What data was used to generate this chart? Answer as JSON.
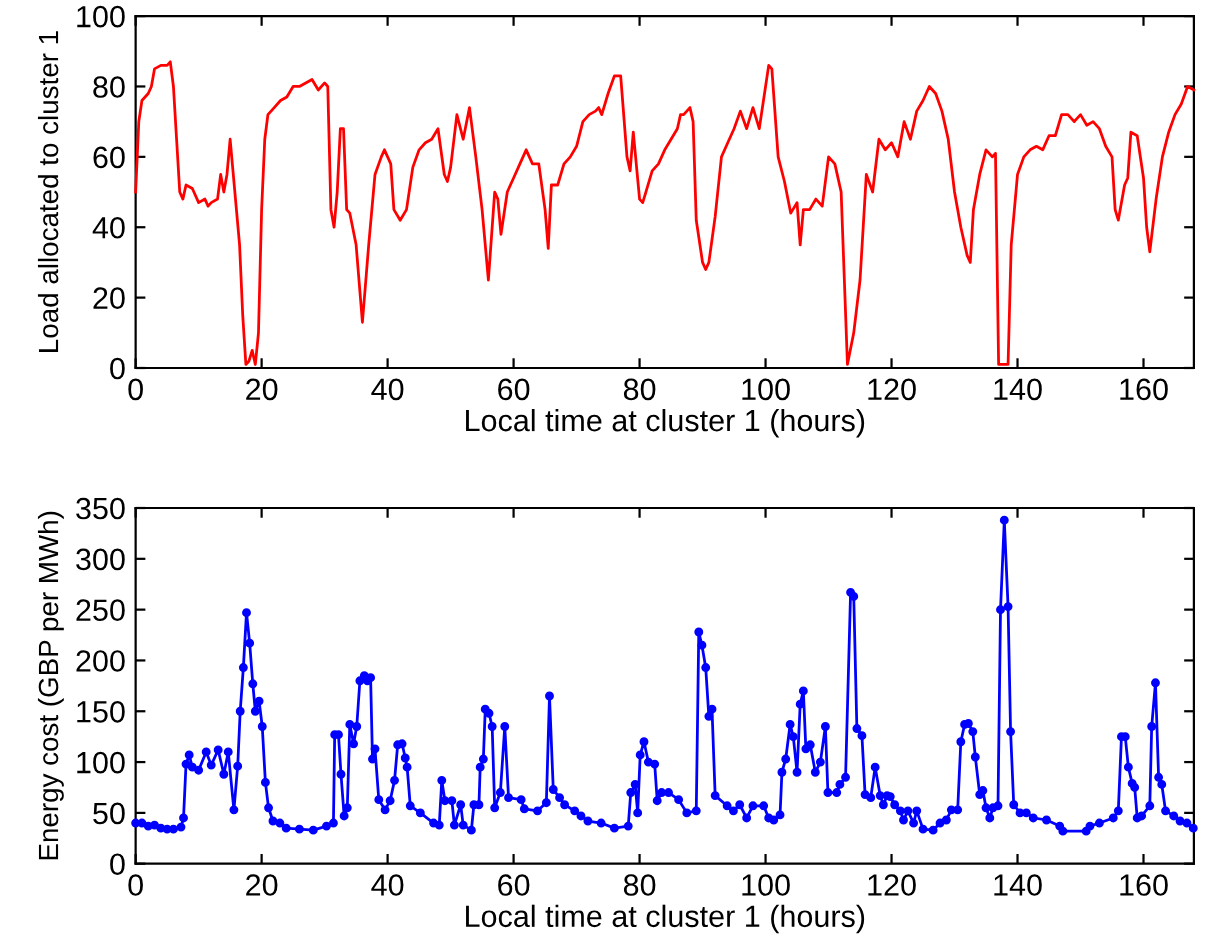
{
  "chart_data": [
    {
      "type": "line",
      "xlabel": "Local time at cluster 1 (hours)",
      "ylabel": "Load allocated to cluster 1",
      "xlim": [
        0,
        168
      ],
      "xticks": [
        0,
        20,
        40,
        60,
        80,
        100,
        120,
        140,
        160
      ],
      "ylim": [
        0,
        100
      ],
      "yticks": [
        0,
        20,
        40,
        60,
        80,
        100
      ],
      "grid": false,
      "legend": false,
      "marker": "none",
      "line_style": "solid",
      "series": [
        {
          "color": "#ff0000",
          "x": [
            0,
            0.5,
            1,
            2,
            2.5,
            3,
            4,
            5,
            5.5,
            6,
            6.5,
            7,
            7.5,
            8,
            9,
            10,
            11,
            11.5,
            12,
            13,
            13.5,
            14,
            14.5,
            15,
            15.5,
            16,
            16.5,
            17,
            17.5,
            18,
            18.5,
            19,
            19.5,
            20,
            20.5,
            21,
            22,
            23,
            24,
            25,
            26,
            27,
            28,
            29,
            30,
            30.5,
            31,
            31.5,
            32,
            32.5,
            33,
            33.5,
            34,
            35,
            36,
            37,
            38,
            39,
            39.5,
            40,
            40.5,
            41,
            42,
            43,
            44,
            45,
            46,
            47,
            48,
            49,
            49.5,
            50,
            51,
            52,
            53,
            54,
            55,
            56,
            57,
            57.5,
            58,
            59,
            60,
            61,
            62,
            63,
            64,
            65,
            65.5,
            66,
            67,
            68,
            69,
            70,
            71,
            72,
            73,
            73.5,
            74,
            75,
            76,
            77,
            78,
            78.5,
            79,
            80,
            80.5,
            81,
            82,
            83,
            84,
            85,
            86,
            86.5,
            87,
            88,
            88.5,
            89,
            90,
            90.5,
            91,
            92,
            93,
            94,
            95,
            96,
            97,
            98,
            99,
            100,
            100.5,
            101,
            102,
            103,
            104,
            105,
            105.5,
            106,
            107,
            108,
            109,
            110,
            111,
            112,
            113,
            114,
            115,
            116,
            117,
            118,
            119,
            120,
            121,
            122,
            123,
            124,
            125,
            126,
            127,
            128,
            129,
            130,
            131,
            132,
            132.5,
            133,
            134,
            135,
            136,
            136.5,
            137,
            138,
            138.5,
            139,
            140,
            141,
            142,
            143,
            144,
            145,
            146,
            147,
            148,
            149,
            150,
            151,
            152,
            153,
            154,
            155,
            155.5,
            156,
            157,
            157.5,
            158,
            159,
            160,
            160.5,
            161,
            162,
            163,
            164,
            165,
            166,
            167,
            168
          ],
          "values": [
            50,
            70,
            76,
            78,
            80,
            85,
            86,
            86,
            87,
            80,
            65,
            50,
            48,
            52,
            51,
            47,
            48,
            46,
            47,
            48,
            55,
            50,
            55,
            65,
            55,
            45,
            35,
            15,
            1,
            2,
            5,
            1,
            10,
            45,
            65,
            72,
            74,
            76,
            77,
            80,
            80,
            81,
            82,
            79,
            81,
            80,
            45,
            40,
            50,
            68,
            68,
            45,
            44,
            35,
            13,
            35,
            55,
            60,
            62,
            60,
            58,
            45,
            42,
            45,
            57,
            62,
            64,
            65,
            68,
            55,
            53,
            57,
            72,
            65,
            74,
            60,
            45,
            25,
            50,
            48,
            38,
            50,
            54,
            58,
            62,
            58,
            58,
            45,
            34,
            52,
            52,
            58,
            60,
            63,
            70,
            72,
            73,
            74,
            72,
            78,
            83,
            83,
            60,
            56,
            67,
            48,
            47,
            50,
            56,
            58,
            62,
            65,
            68,
            72,
            72,
            74,
            70,
            42,
            30,
            28,
            30,
            43,
            60,
            64,
            68,
            73,
            68,
            74,
            68,
            80,
            86,
            85,
            60,
            53,
            44,
            47,
            35,
            45,
            45,
            48,
            46,
            60,
            58,
            50,
            1,
            10,
            25,
            55,
            50,
            65,
            62,
            64,
            60,
            70,
            65,
            73,
            76,
            80,
            78,
            73,
            65,
            50,
            40,
            32,
            30,
            45,
            55,
            62,
            60,
            61,
            1,
            1,
            1,
            35,
            55,
            60,
            62,
            63,
            62,
            66,
            66,
            72,
            72,
            70,
            72,
            69,
            70,
            68,
            63,
            60,
            45,
            42,
            52,
            54,
            67,
            66,
            54,
            40,
            33,
            48,
            60,
            67,
            72,
            75,
            80,
            79
          ]
        }
      ]
    },
    {
      "type": "line",
      "xlabel": "Local time at cluster 1 (hours)",
      "ylabel": "Energy cost (GBP per MWh)",
      "xlim": [
        0,
        168
      ],
      "xticks": [
        0,
        20,
        40,
        60,
        80,
        100,
        120,
        140,
        160
      ],
      "ylim": [
        0,
        350
      ],
      "yticks": [
        0,
        50,
        100,
        150,
        200,
        250,
        300,
        350
      ],
      "grid": false,
      "legend": false,
      "marker": "circle",
      "line_style": "solid",
      "series": [
        {
          "color": "#0000ff",
          "x": [
            0,
            1,
            2,
            3,
            4,
            5,
            6,
            7.2,
            7.6,
            8,
            8.5,
            9,
            10,
            11.2,
            12,
            13.1,
            14,
            14.7,
            15.6,
            16.2,
            16.6,
            17.1,
            17.6,
            18.1,
            18.6,
            19,
            19.6,
            20.1,
            20.6,
            21.1,
            21.8,
            22.9,
            23.9,
            26,
            28.2,
            30.3,
            31.4,
            31.6,
            32.2,
            32.6,
            33.1,
            33.6,
            34,
            34.6,
            35.1,
            35.6,
            36.3,
            36.8,
            37.3,
            37.6,
            38,
            38.6,
            39.6,
            40.4,
            41.1,
            41.6,
            42.3,
            42.8,
            43.1,
            43.6,
            45.2,
            47.3,
            48.2,
            48.6,
            49.1,
            50.2,
            50.6,
            51.6,
            52,
            53.3,
            53.7,
            54.5,
            54.7,
            55.2,
            55.5,
            56.1,
            56.6,
            57,
            57.9,
            58.6,
            59.2,
            61.2,
            61.7,
            63.8,
            65.2,
            65.7,
            66.3,
            67.3,
            68.1,
            69.7,
            70.7,
            71.8,
            73.9,
            76,
            78.2,
            78.6,
            79.3,
            79.7,
            80.1,
            80.7,
            81.4,
            82.4,
            82.8,
            83.5,
            84.6,
            86.2,
            87.5,
            89,
            89.4,
            89.9,
            90.5,
            91,
            91.5,
            92,
            93.9,
            94.9,
            95.9,
            97,
            98,
            99.7,
            100.5,
            101.3,
            102.3,
            102.6,
            103.2,
            103.9,
            104.4,
            105,
            105.5,
            106,
            106.4,
            107.1,
            107.9,
            108.7,
            109.5,
            109.9,
            111.3,
            111.8,
            112.7,
            113.5,
            114,
            114.5,
            115.3,
            115.8,
            116.7,
            117.4,
            118.2,
            118.7,
            119.3,
            119.8,
            120.5,
            121.4,
            121.9,
            122.6,
            123.5,
            124,
            125,
            126.6,
            127.7,
            128.7,
            129.5,
            130.5,
            131,
            131.6,
            132.2,
            132.9,
            133.3,
            134,
            134.5,
            135,
            135.6,
            136.1,
            136.9,
            137.3,
            137.9,
            138.5,
            138.9,
            139.4,
            140.4,
            141.4,
            142.5,
            144.6,
            146.7,
            147.2,
            150.9,
            151.5,
            153,
            155.2,
            156,
            156.5,
            157.1,
            157.6,
            158.2,
            158.6,
            159,
            159.7,
            161,
            161.3,
            161.9,
            162.4,
            162.9,
            163.5,
            164.8,
            165.8,
            166.9,
            167.9
          ],
          "values": [
            40,
            40,
            37,
            38,
            35,
            34,
            34,
            36,
            45,
            98,
            107,
            95,
            92,
            110,
            97,
            112,
            88,
            110,
            53,
            96,
            150,
            193,
            247,
            217,
            177,
            150,
            160,
            135,
            80,
            55,
            42,
            40,
            35,
            34,
            33,
            37,
            40,
            127,
            127,
            88,
            47,
            55,
            137,
            118,
            135,
            180,
            185,
            180,
            183,
            103,
            113,
            63,
            53,
            62,
            82,
            117,
            118,
            104,
            95,
            57,
            50,
            40,
            38,
            82,
            62,
            62,
            38,
            58,
            38,
            33,
            58,
            58,
            95,
            103,
            152,
            148,
            135,
            55,
            70,
            135,
            65,
            63,
            54,
            52,
            60,
            165,
            73,
            65,
            58,
            52,
            47,
            42,
            40,
            35,
            37,
            70,
            78,
            50,
            107,
            120,
            100,
            98,
            62,
            70,
            70,
            63,
            50,
            52,
            228,
            215,
            193,
            145,
            152,
            67,
            57,
            52,
            58,
            45,
            57,
            57,
            45,
            43,
            48,
            90,
            103,
            137,
            125,
            90,
            157,
            170,
            113,
            117,
            90,
            100,
            135,
            70,
            70,
            78,
            85,
            267,
            263,
            133,
            126,
            68,
            65,
            95,
            67,
            58,
            67,
            66,
            58,
            52,
            43,
            52,
            40,
            52,
            34,
            33,
            40,
            43,
            53,
            53,
            120,
            137,
            138,
            130,
            105,
            68,
            72,
            55,
            45,
            55,
            57,
            250,
            338,
            253,
            130,
            58,
            50,
            50,
            45,
            43,
            37,
            32,
            32,
            37,
            40,
            45,
            52,
            125,
            125,
            95,
            79,
            75,
            45,
            47,
            57,
            135,
            178,
            85,
            78,
            52,
            47,
            42,
            40,
            35
          ]
        }
      ]
    }
  ]
}
